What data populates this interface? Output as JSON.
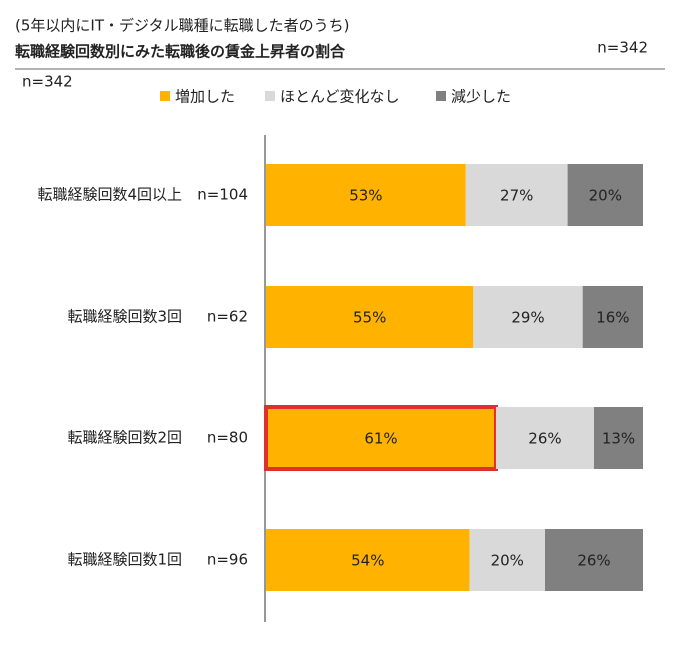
{
  "chart_data": {
    "type": "stacked_bar_horizontal",
    "subtitle": "(5年以内にIT・デジタル職種に転職した者のうち)",
    "title": "転職経験回数別にみた転職後の賃金上昇者の割合",
    "annotations": [
      "n=342",
      "n=342"
    ],
    "categories": [
      "転職経験回数4回以上",
      "転職経験回数3回",
      "転職経験回数2回",
      "転職経験回数1回"
    ],
    "category_n": [
      "n=104",
      "n=62",
      "n=80",
      "n=96"
    ],
    "series": [
      {
        "name": "増加した",
        "color": "#ffb300",
        "values": [
          53,
          55,
          61,
          54
        ],
        "value_labels": [
          "53%",
          "55%",
          "61%",
          "54%"
        ]
      },
      {
        "name": "ほとんど変化なし",
        "color": "#d9d9d9",
        "values": [
          27,
          29,
          26,
          20
        ],
        "value_labels": [
          "27%",
          "29%",
          "26%",
          "20%"
        ]
      },
      {
        "name": "減少した",
        "color": "#808080",
        "values": [
          20,
          16,
          13,
          26
        ],
        "value_labels": [
          "20%",
          "16%",
          "13%",
          "26%"
        ]
      }
    ],
    "xlim": [
      0,
      100
    ],
    "highlight": {
      "series": 0,
      "category": 2,
      "color": "#e0302a"
    }
  }
}
